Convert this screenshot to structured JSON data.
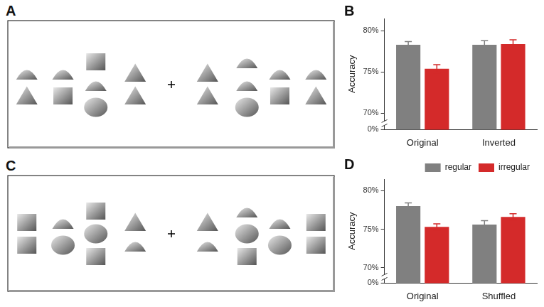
{
  "panel_labels": [
    "A",
    "B",
    "C",
    "D"
  ],
  "chart_data": [
    {
      "type": "bar",
      "categories": [
        "Original",
        "Inverted"
      ],
      "y_label": "Accuracy",
      "ylim": [
        68,
        81.5
      ],
      "yticks": [
        {
          "value": 70,
          "label": "70%"
        },
        {
          "value": 75,
          "label": "75%"
        },
        {
          "value": 80,
          "label": "80%"
        }
      ],
      "axis_break_label": "0%",
      "grid": false,
      "series": [
        {
          "color": "#808080",
          "values": [
            78.3,
            78.3
          ],
          "errors": [
            0.4,
            0.5
          ]
        },
        {
          "color": "#d42a2a",
          "values": [
            75.4,
            78.4
          ],
          "errors": [
            0.5,
            0.5
          ]
        }
      ]
    },
    {
      "type": "bar",
      "categories": [
        "Original",
        "Shuffled"
      ],
      "y_label": "Accuracy",
      "ylim": [
        68,
        81.5
      ],
      "yticks": [
        {
          "value": 70,
          "label": "70%"
        },
        {
          "value": 75,
          "label": "75%"
        },
        {
          "value": 80,
          "label": "80%"
        }
      ],
      "axis_break_label": "0%",
      "grid": false,
      "legend": "top-right",
      "series": [
        {
          "name": "regular",
          "color": "#808080",
          "values": [
            78.0,
            75.6
          ],
          "errors": [
            0.4,
            0.5
          ]
        },
        {
          "name": "irregular",
          "color": "#d42a2a",
          "values": [
            75.3,
            76.6
          ],
          "errors": [
            0.4,
            0.4
          ]
        }
      ]
    }
  ]
}
